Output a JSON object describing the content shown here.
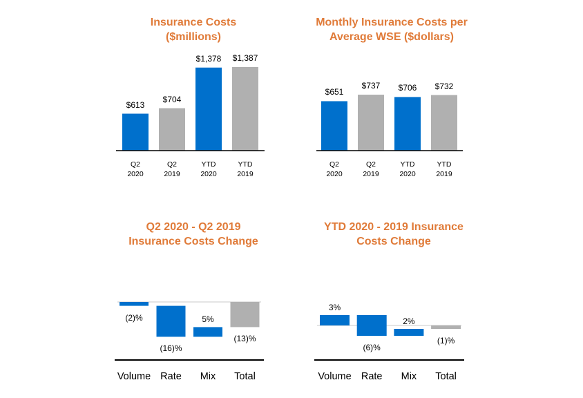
{
  "chart_data": [
    {
      "type": "bar",
      "title": "Insurance Costs ($millions)",
      "categories": [
        "Q2 2020",
        "Q2 2019",
        "YTD 2020",
        "YTD 2019"
      ],
      "values": [
        613,
        704,
        1378,
        1387
      ],
      "value_labels": [
        "$613",
        "$704",
        "$1,378",
        "$1,387"
      ],
      "colors": [
        "#0070cc",
        "#b0b0b0",
        "#0070cc",
        "#b0b0b0"
      ]
    },
    {
      "type": "bar",
      "title": "Monthly Insurance Costs per Average WSE ($dollars)",
      "categories": [
        "Q2 2020",
        "Q2 2019",
        "YTD 2020",
        "YTD 2019"
      ],
      "values": [
        651,
        737,
        706,
        732
      ],
      "value_labels": [
        "$651",
        "$737",
        "$706",
        "$732"
      ],
      "colors": [
        "#0070cc",
        "#b0b0b0",
        "#0070cc",
        "#b0b0b0"
      ]
    },
    {
      "type": "waterfall",
      "title": "Q2 2020 - Q2 2019 Insurance Costs Change",
      "categories": [
        "Volume",
        "Rate",
        "Mix",
        "Total"
      ],
      "values": [
        -2,
        -16,
        5,
        -13
      ],
      "value_labels": [
        "(2)%",
        "(16)%",
        "5%",
        "(13)%"
      ],
      "colors": [
        "#0070cc",
        "#0070cc",
        "#0070cc",
        "#b0b0b0"
      ]
    },
    {
      "type": "waterfall",
      "title": "YTD 2020 -  2019 Insurance Costs Change",
      "categories": [
        "Volume",
        "Rate",
        "Mix",
        "Total"
      ],
      "values": [
        3,
        -6,
        2,
        -1
      ],
      "value_labels": [
        "3%",
        "(6)%",
        "2%",
        "(1)%"
      ],
      "colors": [
        "#0070cc",
        "#0070cc",
        "#0070cc",
        "#b0b0b0"
      ]
    }
  ]
}
